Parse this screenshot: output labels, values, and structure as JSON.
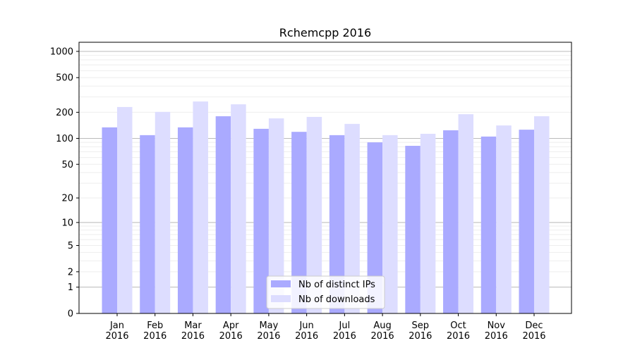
{
  "chart_data": {
    "type": "bar",
    "title": "Rchemcpp 2016",
    "xlabel": "",
    "ylabel": "",
    "yscale": "log(1+y)",
    "ylim": [
      0,
      1270
    ],
    "yticks": [
      0,
      1,
      2,
      5,
      10,
      20,
      50,
      100,
      200,
      500,
      1000
    ],
    "grid": true,
    "legend_position": "bottom-center",
    "categories": [
      "Jan\n2016",
      "Feb\n2016",
      "Mar\n2016",
      "Apr\n2016",
      "May\n2016",
      "Jun\n2016",
      "Jul\n2016",
      "Aug\n2016",
      "Sep\n2016",
      "Oct\n2016",
      "Nov\n2016",
      "Dec\n2016"
    ],
    "series": [
      {
        "name": "Nb of distinct IPs",
        "color": "#aaaaff",
        "values": [
          134,
          109,
          134,
          180,
          129,
          119,
          109,
          90,
          82,
          124,
          105,
          126
        ]
      },
      {
        "name": "Nb of downloads",
        "color": "#ddddff",
        "values": [
          230,
          202,
          266,
          247,
          170,
          177,
          147,
          109,
          113,
          190,
          141,
          180
        ]
      }
    ]
  }
}
